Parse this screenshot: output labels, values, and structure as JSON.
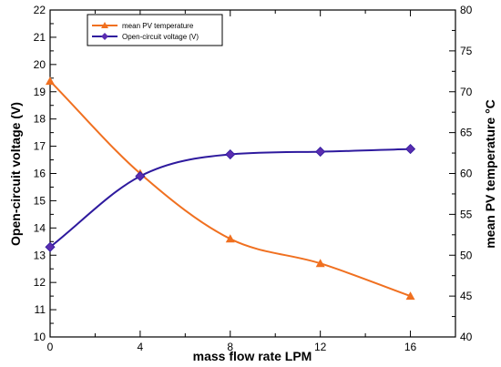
{
  "chart_data": {
    "type": "line",
    "title": "",
    "xlabel": "mass flow rate LPM",
    "ylabel_left": "Open-circuit voltage (V)",
    "ylabel_right": "mean PV  temperature °C",
    "x_ticks": [
      "0",
      "4",
      "8",
      "12",
      "16"
    ],
    "y_left_ticks": [
      "10",
      "11",
      "12",
      "13",
      "14",
      "15",
      "16",
      "17",
      "18",
      "19",
      "20",
      "21",
      "22"
    ],
    "y_right_ticks": [
      "40",
      "45",
      "50",
      "55",
      "60",
      "65",
      "70",
      "75",
      "80"
    ],
    "xlim": [
      0,
      18
    ],
    "ylim_left": [
      10,
      22
    ],
    "ylim_right": [
      40,
      80
    ],
    "grid": false,
    "legend_position": "top-left",
    "series": [
      {
        "name": "mean PV temperature",
        "axis": "right",
        "marker": "triangle",
        "color": "#F07020",
        "x": [
          0,
          4,
          8,
          12,
          16
        ],
        "y": [
          71.3,
          60.0,
          52.0,
          49.0,
          45.0
        ]
      },
      {
        "name": "Open-circuit voltage (V)",
        "axis": "left",
        "marker": "diamond",
        "color": "#2E1A9E",
        "x": [
          0,
          4,
          8,
          12,
          16
        ],
        "y": [
          13.3,
          15.9,
          16.7,
          16.8,
          16.9
        ]
      }
    ]
  }
}
